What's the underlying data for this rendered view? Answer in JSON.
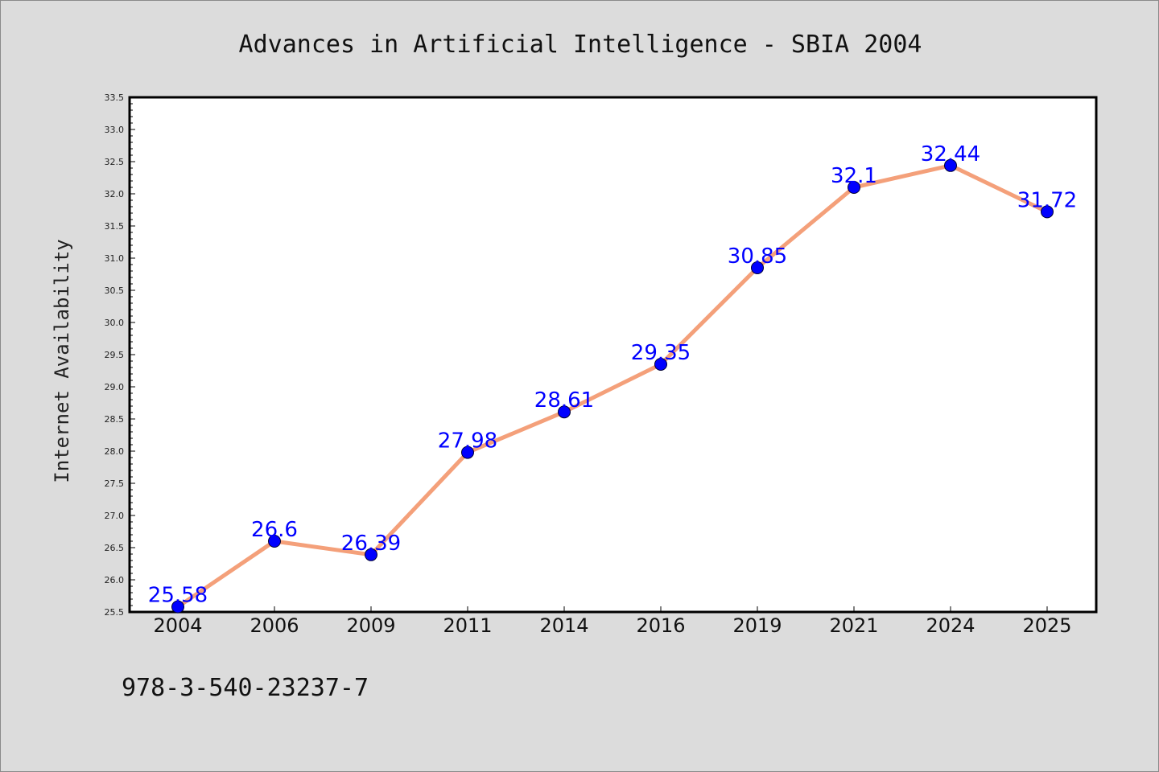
{
  "page": {
    "background_color": "#dcdcdc",
    "footer_text": "978-3-540-23237-7"
  },
  "chart_data": {
    "type": "line",
    "title": "Advances in Artificial Intelligence - SBIA 2004",
    "xlabel": "",
    "ylabel": "Internet Availability",
    "categories": [
      "2004",
      "2006",
      "2009",
      "2011",
      "2014",
      "2016",
      "2019",
      "2021",
      "2024",
      "2025"
    ],
    "series": [
      {
        "values": [
          25.58,
          26.6,
          26.39,
          27.98,
          28.61,
          29.35,
          30.85,
          32.1,
          32.44,
          31.72
        ],
        "data_labels": [
          "25.58",
          "26.6",
          "26.39",
          "27.98",
          "28.61",
          "29.35",
          "30.85",
          "32.1",
          "32.44",
          "31.72"
        ],
        "line_color": "#f4a07a",
        "marker_color": "#0000ff",
        "label_color": "#0000ff"
      }
    ],
    "ylim": [
      25.5,
      33.5
    ],
    "yticks": [
      "25.5",
      "26.0",
      "26.5",
      "27.0",
      "27.5",
      "28.0",
      "28.5",
      "29.0",
      "29.5",
      "30.0",
      "30.5",
      "31.0",
      "31.5",
      "32.0",
      "32.5",
      "33.0",
      "33.5"
    ],
    "grid": false,
    "legend": "none",
    "plot_background": "#ffffff"
  }
}
